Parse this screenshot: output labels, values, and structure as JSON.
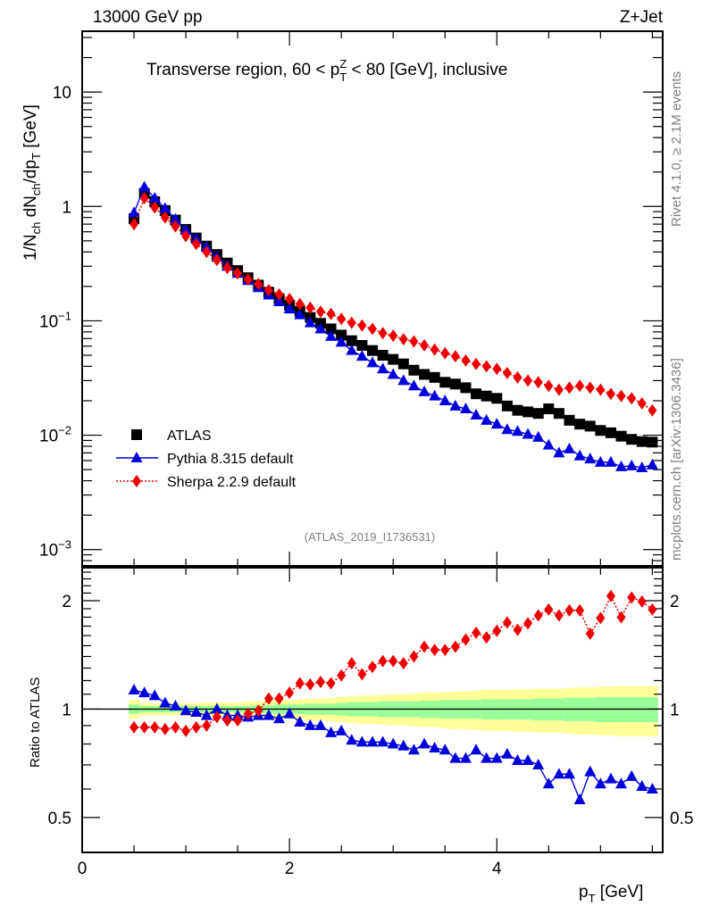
{
  "header": {
    "left": "13000 GeV pp",
    "right": "Z+Jet"
  },
  "side_labels": {
    "rivet": "Rivet 4.1.0, ≥ 2.1M events",
    "mcplots": "mcplots.cern.ch [arXiv:1306.3436]"
  },
  "chart_data": [
    {
      "type": "scatter",
      "panel": "main",
      "title": "Transverse region, 60 < p_T^Z < 80 [GeV], inclusive",
      "title_parts": {
        "pre": "Transverse region, 60 < p",
        "sup": "Z",
        "sub": "T",
        "post": " < 80 [GeV], inclusive"
      },
      "xlabel": "p_T [GeV]",
      "ylabel": "1/N_ch dN_ch/dp_T [GeV]",
      "yscale": "log",
      "xlim": [
        0,
        5.6
      ],
      "ylim": [
        0.00072,
        34
      ],
      "xticks": [
        "0",
        "2",
        "4"
      ],
      "yticks": [
        {
          "value": 10,
          "label": "10"
        },
        {
          "value": 1,
          "label": "1"
        },
        {
          "value": 0.1,
          "label": "10^-1"
        },
        {
          "value": 0.01,
          "label": "10^-2"
        },
        {
          "value": 0.001,
          "label": "10^-3"
        }
      ],
      "watermark": "(ATLAS_2019_I1736531)",
      "legend_position": "lower-left",
      "x": [
        0.5,
        0.6,
        0.7,
        0.8,
        0.9,
        1.0,
        1.1,
        1.2,
        1.3,
        1.4,
        1.5,
        1.6,
        1.7,
        1.8,
        1.9,
        2.0,
        2.1,
        2.2,
        2.3,
        2.4,
        2.5,
        2.6,
        2.7,
        2.8,
        2.9,
        3.0,
        3.1,
        3.2,
        3.3,
        3.4,
        3.5,
        3.6,
        3.7,
        3.8,
        3.9,
        4.0,
        4.1,
        4.2,
        4.3,
        4.4,
        4.5,
        4.6,
        4.7,
        4.8,
        4.9,
        5.0,
        5.1,
        5.2,
        5.3,
        5.4,
        5.5
      ],
      "series": [
        {
          "name": "ATLAS",
          "color": "#000000",
          "marker": "square",
          "line": "none",
          "values": [
            0.78,
            1.3,
            1.1,
            0.92,
            0.76,
            0.63,
            0.53,
            0.45,
            0.38,
            0.32,
            0.275,
            0.238,
            0.205,
            0.178,
            0.156,
            0.137,
            0.121,
            0.107,
            0.095,
            0.085,
            0.075,
            0.067,
            0.061,
            0.055,
            0.05,
            0.046,
            0.042,
            0.037,
            0.034,
            0.032,
            0.029,
            0.028,
            0.026,
            0.023,
            0.022,
            0.021,
            0.018,
            0.0165,
            0.016,
            0.0155,
            0.017,
            0.0155,
            0.0135,
            0.0125,
            0.012,
            0.011,
            0.0105,
            0.0098,
            0.0092,
            0.0088,
            0.0087
          ]
        },
        {
          "name": "Pythia 8.315 default",
          "color": "#0000dd",
          "marker": "triangle",
          "line": "solid",
          "values": [
            0.88,
            1.48,
            1.18,
            0.96,
            0.77,
            0.62,
            0.52,
            0.44,
            0.36,
            0.3,
            0.26,
            0.225,
            0.195,
            0.168,
            0.147,
            0.127,
            0.113,
            0.096,
            0.085,
            0.073,
            0.065,
            0.055,
            0.049,
            0.043,
            0.038,
            0.034,
            0.03,
            0.027,
            0.024,
            0.022,
            0.02,
            0.018,
            0.017,
            0.015,
            0.0135,
            0.0125,
            0.0112,
            0.0108,
            0.0102,
            0.0096,
            0.0082,
            0.007,
            0.0076,
            0.0066,
            0.0062,
            0.0058,
            0.0058,
            0.0053,
            0.0054,
            0.0052,
            0.0055
          ]
        },
        {
          "name": "Sherpa 2.2.9 default",
          "color": "#ee0000",
          "marker": "diamond",
          "line": "dotted",
          "values": [
            0.7,
            1.18,
            0.98,
            0.8,
            0.67,
            0.55,
            0.47,
            0.4,
            0.34,
            0.29,
            0.26,
            0.23,
            0.21,
            0.185,
            0.17,
            0.155,
            0.14,
            0.13,
            0.12,
            0.115,
            0.104,
            0.096,
            0.091,
            0.085,
            0.078,
            0.074,
            0.069,
            0.066,
            0.061,
            0.056,
            0.052,
            0.049,
            0.045,
            0.042,
            0.04,
            0.038,
            0.035,
            0.032,
            0.03,
            0.029,
            0.027,
            0.025,
            0.026,
            0.027,
            0.026,
            0.025,
            0.023,
            0.022,
            0.021,
            0.019,
            0.0165
          ]
        }
      ]
    },
    {
      "type": "scatter",
      "panel": "ratio",
      "ylabel": "Ratio to ATLAS",
      "xlabel": "p_T [GeV]",
      "yscale": "log",
      "xlim": [
        0,
        5.6
      ],
      "ylim": [
        0.4,
        2.47
      ],
      "yticks": [
        {
          "value": 2,
          "label": "2"
        },
        {
          "value": 1,
          "label": "1"
        },
        {
          "value": 0.5,
          "label": "0.5"
        }
      ],
      "xticks": [
        "0",
        "2",
        "4"
      ],
      "reference_line": 1,
      "x": [
        0.5,
        0.6,
        0.7,
        0.8,
        0.9,
        1.0,
        1.1,
        1.2,
        1.3,
        1.4,
        1.5,
        1.6,
        1.7,
        1.8,
        1.9,
        2.0,
        2.1,
        2.2,
        2.3,
        2.4,
        2.5,
        2.6,
        2.7,
        2.8,
        2.9,
        3.0,
        3.1,
        3.2,
        3.3,
        3.4,
        3.5,
        3.6,
        3.7,
        3.8,
        3.9,
        4.0,
        4.1,
        4.2,
        4.3,
        4.4,
        4.5,
        4.6,
        4.7,
        4.8,
        4.9,
        5.0,
        5.1,
        5.2,
        5.3,
        5.4,
        5.5
      ],
      "uncertainty_bands": {
        "inner_color": "#99ff99",
        "outer_color": "#ffff99",
        "inner_halfwidth": [
          0.03,
          0.02,
          0.02,
          0.02,
          0.02,
          0.02,
          0.02,
          0.02,
          0.02,
          0.02,
          0.02,
          0.02,
          0.025,
          0.025,
          0.03,
          0.03,
          0.03,
          0.035,
          0.035,
          0.035,
          0.04,
          0.045,
          0.045,
          0.045,
          0.05,
          0.05,
          0.05,
          0.05,
          0.055,
          0.055,
          0.06,
          0.06,
          0.06,
          0.06,
          0.065,
          0.065,
          0.065,
          0.065,
          0.065,
          0.07,
          0.07,
          0.07,
          0.075,
          0.075,
          0.075,
          0.08,
          0.08,
          0.08,
          0.08,
          0.08,
          0.08
        ],
        "outer_halfwidth": [
          0.06,
          0.04,
          0.04,
          0.04,
          0.04,
          0.04,
          0.04,
          0.045,
          0.045,
          0.045,
          0.045,
          0.05,
          0.05,
          0.055,
          0.06,
          0.06,
          0.065,
          0.07,
          0.07,
          0.075,
          0.08,
          0.085,
          0.09,
          0.09,
          0.095,
          0.1,
          0.1,
          0.105,
          0.11,
          0.11,
          0.115,
          0.12,
          0.12,
          0.125,
          0.13,
          0.13,
          0.13,
          0.135,
          0.135,
          0.14,
          0.14,
          0.14,
          0.145,
          0.15,
          0.15,
          0.155,
          0.155,
          0.16,
          0.16,
          0.16,
          0.16
        ]
      },
      "series": [
        {
          "name": "Pythia 8.315 default",
          "color": "#0000dd",
          "marker": "triangle",
          "line": "solid",
          "values": [
            1.13,
            1.11,
            1.09,
            1.04,
            1.02,
            0.99,
            0.98,
            0.96,
            1.0,
            0.96,
            0.96,
            0.95,
            0.96,
            0.96,
            0.94,
            0.97,
            0.92,
            0.9,
            0.9,
            0.86,
            0.87,
            0.82,
            0.81,
            0.81,
            0.81,
            0.8,
            0.79,
            0.77,
            0.8,
            0.78,
            0.77,
            0.73,
            0.73,
            0.77,
            0.73,
            0.73,
            0.75,
            0.72,
            0.72,
            0.7,
            0.62,
            0.66,
            0.66,
            0.56,
            0.67,
            0.62,
            0.64,
            0.62,
            0.65,
            0.61,
            0.6
          ]
        },
        {
          "name": "Sherpa 2.2.9 default",
          "color": "#ee0000",
          "marker": "diamond",
          "line": "dotted",
          "values": [
            0.89,
            0.89,
            0.89,
            0.88,
            0.89,
            0.87,
            0.89,
            0.9,
            0.95,
            0.93,
            0.93,
            0.97,
            0.99,
            1.07,
            1.07,
            1.11,
            1.18,
            1.17,
            1.19,
            1.18,
            1.24,
            1.34,
            1.25,
            1.31,
            1.36,
            1.36,
            1.34,
            1.4,
            1.49,
            1.46,
            1.46,
            1.49,
            1.56,
            1.63,
            1.58,
            1.65,
            1.74,
            1.66,
            1.73,
            1.82,
            1.89,
            1.82,
            1.88,
            1.88,
            1.62,
            1.79,
            2.06,
            1.8,
            2.04,
            1.99,
            1.89
          ]
        }
      ]
    }
  ]
}
